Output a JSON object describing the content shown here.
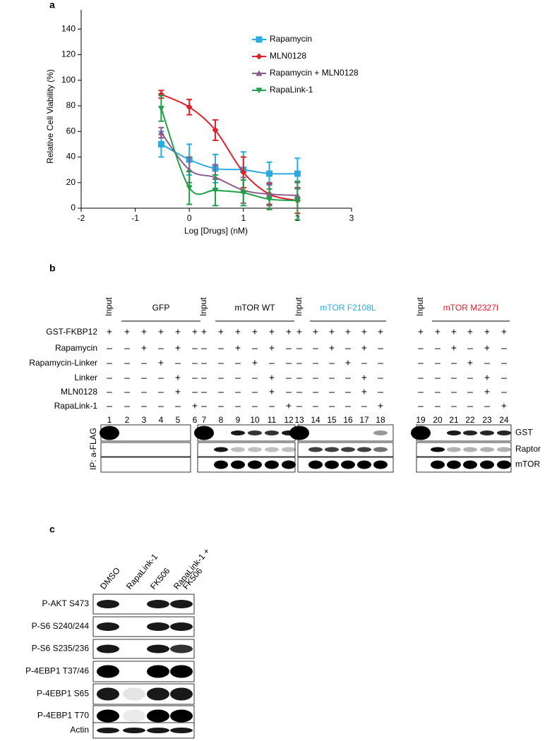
{
  "chart_data": {
    "type": "line",
    "panel_label": "a",
    "x_label": "Log [Drugs] (nM)",
    "y_label": "Relative Cell Viability (%)",
    "x": [
      -0.52,
      0,
      0.48,
      1,
      1.48,
      2
    ],
    "series": [
      {
        "name": "Rapamycin",
        "color": "#29abe2",
        "marker": "square",
        "values": [
          50,
          38,
          31,
          30,
          27,
          27
        ],
        "errors": [
          10,
          12,
          11,
          14,
          9,
          12
        ]
      },
      {
        "name": "MLN0128",
        "color": "#e0202a",
        "marker": "diamond",
        "values": [
          89,
          79,
          61,
          28,
          11,
          6
        ],
        "errors": [
          3,
          6,
          8,
          12,
          8,
          10
        ]
      },
      {
        "name": "Rapamycin + MLN0128",
        "color": "#8b5a8c",
        "marker": "triangle-up",
        "values": [
          59,
          30,
          24,
          14,
          11,
          10
        ],
        "errors": [
          4,
          10,
          10,
          10,
          9,
          10
        ]
      },
      {
        "name": "RapaLink-1",
        "color": "#1fa046",
        "marker": "triangle-down",
        "values": [
          78,
          16,
          14,
          12,
          7,
          6
        ],
        "errors": [
          10,
          13,
          12,
          10,
          8,
          15
        ]
      }
    ],
    "xlim": [
      -2,
      3
    ],
    "xticks": [
      -2,
      -1,
      0,
      1,
      2,
      3
    ],
    "ylim": [
      0,
      155
    ],
    "yticks": [
      0,
      20,
      40,
      60,
      80,
      100,
      120,
      140
    ]
  },
  "panel_b": {
    "label": "b",
    "groups": [
      {
        "input": "Input",
        "name": "GFP",
        "color": "#000000"
      },
      {
        "input": "Input",
        "name": "mTOR WT",
        "color": "#000000"
      },
      {
        "input": "Input",
        "name": "mTOR F2108L",
        "color": "#29abe2"
      },
      {
        "input": "Input",
        "name": "mTOR M2327I",
        "color": "#e0202a"
      }
    ],
    "rows": [
      {
        "label": "GST-FKBP12",
        "cells": [
          "+",
          "+",
          "+",
          "+",
          "+",
          "+",
          "+",
          "+",
          "+",
          "+",
          "+",
          "+",
          "+",
          "+",
          "+",
          "+",
          "+",
          "+",
          "+",
          "+",
          "+",
          "+",
          "+",
          "+"
        ]
      },
      {
        "label": "Rapamycin",
        "cells": [
          "–",
          "–",
          "+",
          "–",
          "+",
          "–",
          "–",
          "–",
          "+",
          "–",
          "+",
          "–",
          "–",
          "–",
          "+",
          "–",
          "+",
          "–",
          "–",
          "–",
          "+",
          "–",
          "+",
          "–"
        ]
      },
      {
        "label": "Rapamycin-Linker",
        "cells": [
          "–",
          "–",
          "–",
          "+",
          "–",
          "–",
          "–",
          "–",
          "–",
          "+",
          "–",
          "–",
          "–",
          "–",
          "–",
          "+",
          "–",
          "–",
          "–",
          "–",
          "–",
          "+",
          "–",
          "–"
        ]
      },
      {
        "label": "Linker",
        "cells": [
          "–",
          "–",
          "–",
          "–",
          "+",
          "–",
          "–",
          "–",
          "–",
          "–",
          "+",
          "–",
          "–",
          "–",
          "–",
          "–",
          "+",
          "–",
          "–",
          "–",
          "–",
          "–",
          "+",
          "–"
        ]
      },
      {
        "label": "MLN0128",
        "cells": [
          "–",
          "–",
          "–",
          "–",
          "+",
          "–",
          "–",
          "–",
          "–",
          "–",
          "+",
          "–",
          "–",
          "–",
          "–",
          "–",
          "+",
          "–",
          "–",
          "–",
          "–",
          "–",
          "+",
          "–"
        ]
      },
      {
        "label": "RapaLink-1",
        "cells": [
          "–",
          "–",
          "–",
          "–",
          "–",
          "+",
          "–",
          "–",
          "–",
          "–",
          "–",
          "+",
          "–",
          "–",
          "–",
          "–",
          "–",
          "+",
          "–",
          "–",
          "–",
          "–",
          "–",
          "+"
        ]
      }
    ],
    "lanes": [
      1,
      2,
      3,
      4,
      5,
      6,
      7,
      8,
      9,
      10,
      11,
      12,
      13,
      14,
      15,
      16,
      17,
      18,
      19,
      20,
      21,
      22,
      23,
      24
    ],
    "blots": [
      "GST",
      "Raptor",
      "mTOR"
    ],
    "ip_label": "IP: a-FLAG"
  },
  "panel_c": {
    "label": "c",
    "columns": [
      [
        "DMSO"
      ],
      [
        "RapaLink-1"
      ],
      [
        "FK506"
      ],
      [
        "RapaLink-1 +",
        "FK506"
      ]
    ],
    "rows": [
      "P-AKT S473",
      "P-S6 S240/244",
      "P-S6 S235/236",
      "P-4EBP1 T37/46",
      "P-4EBP1 S65",
      "P-4EBP1 T70",
      "Actin"
    ]
  }
}
